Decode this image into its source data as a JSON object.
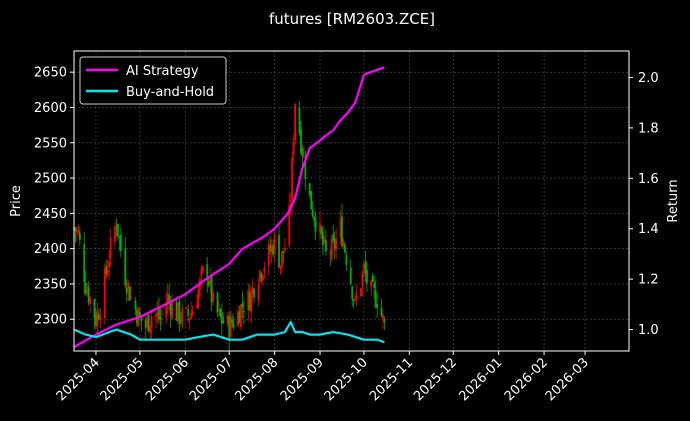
{
  "chart_data": {
    "type": "line",
    "title": "futures [RM2603.ZCE]",
    "ylabel": "Price",
    "ylabel_right": "Return",
    "xlim": [
      "2025-03-17",
      "2026-03-31"
    ],
    "ylim": [
      2255,
      2680
    ],
    "ylim_right": [
      0.915,
      2.105
    ],
    "x_ticks": [
      "2025-04",
      "2025-05",
      "2025-06",
      "2025-07",
      "2025-08",
      "2025-09",
      "2025-10",
      "2025-11",
      "2025-12",
      "2026-01",
      "2026-02",
      "2026-03"
    ],
    "y_ticks": [
      2300,
      2350,
      2400,
      2450,
      2500,
      2550,
      2600,
      2650
    ],
    "y_ticks_right": [
      1.0,
      1.2,
      1.4,
      1.6,
      1.8,
      2.0
    ],
    "grid": true,
    "legend_position": "top-left",
    "colors": {
      "up": "#ff0000",
      "down": "#00b000",
      "ai": "#ff00ff",
      "bh": "#00e5ee",
      "background": "#000000"
    },
    "price_keyframes": {
      "x": [
        "2025-03-17",
        "2025-03-20",
        "2025-03-25",
        "2025-04-01",
        "2025-04-04",
        "2025-04-10",
        "2025-04-15",
        "2025-04-20",
        "2025-04-25",
        "2025-05-01",
        "2025-05-05",
        "2025-05-10",
        "2025-05-15",
        "2025-05-20",
        "2025-05-25",
        "2025-06-01",
        "2025-06-05",
        "2025-06-10",
        "2025-06-15",
        "2025-06-20",
        "2025-06-25",
        "2025-07-01",
        "2025-07-05",
        "2025-07-10",
        "2025-07-15",
        "2025-07-20",
        "2025-07-25",
        "2025-08-01",
        "2025-08-05",
        "2025-08-10",
        "2025-08-12",
        "2025-08-15",
        "2025-08-20",
        "2025-08-25",
        "2025-09-01",
        "2025-09-05",
        "2025-09-10",
        "2025-09-15",
        "2025-09-20",
        "2025-09-25",
        "2025-10-01",
        "2025-10-05",
        "2025-10-10",
        "2025-10-15"
      ],
      "close": [
        2430,
        2420,
        2350,
        2300,
        2320,
        2390,
        2440,
        2370,
        2330,
        2300,
        2290,
        2310,
        2300,
        2330,
        2310,
        2300,
        2310,
        2340,
        2380,
        2320,
        2300,
        2290,
        2300,
        2320,
        2330,
        2360,
        2380,
        2410,
        2380,
        2420,
        2470,
        2610,
        2540,
        2470,
        2420,
        2390,
        2400,
        2430,
        2380,
        2320,
        2370,
        2340,
        2330,
        2290
      ]
    },
    "series": [
      {
        "name": "AI Strategy",
        "axis": "right",
        "x": [
          "2025-03-17",
          "2025-04-01",
          "2025-04-15",
          "2025-05-01",
          "2025-05-15",
          "2025-06-01",
          "2025-06-15",
          "2025-07-01",
          "2025-07-10",
          "2025-07-25",
          "2025-08-01",
          "2025-08-10",
          "2025-08-15",
          "2025-08-20",
          "2025-08-25",
          "2025-09-01",
          "2025-09-05",
          "2025-09-10",
          "2025-09-15",
          "2025-09-20",
          "2025-09-25",
          "2025-10-01",
          "2025-10-05",
          "2025-10-10",
          "2025-10-15"
        ],
        "values": [
          0.93,
          0.98,
          1.02,
          1.05,
          1.09,
          1.14,
          1.2,
          1.26,
          1.32,
          1.37,
          1.4,
          1.46,
          1.52,
          1.64,
          1.72,
          1.75,
          1.77,
          1.79,
          1.83,
          1.86,
          1.9,
          2.01,
          2.02,
          2.03,
          2.04
        ]
      },
      {
        "name": "Buy-and-Hold",
        "axis": "right",
        "x": [
          "2025-03-17",
          "2025-03-25",
          "2025-04-01",
          "2025-04-10",
          "2025-04-15",
          "2025-04-25",
          "2025-05-01",
          "2025-05-10",
          "2025-05-20",
          "2025-06-01",
          "2025-06-10",
          "2025-06-20",
          "2025-07-01",
          "2025-07-10",
          "2025-07-20",
          "2025-08-01",
          "2025-08-08",
          "2025-08-12",
          "2025-08-15",
          "2025-08-20",
          "2025-08-25",
          "2025-09-01",
          "2025-09-10",
          "2025-09-20",
          "2025-10-01",
          "2025-10-10",
          "2025-10-15"
        ],
        "values": [
          1.0,
          0.98,
          0.97,
          0.99,
          1.0,
          0.98,
          0.96,
          0.96,
          0.96,
          0.96,
          0.97,
          0.98,
          0.96,
          0.96,
          0.98,
          0.98,
          0.99,
          1.03,
          0.99,
          0.99,
          0.98,
          0.98,
          0.99,
          0.98,
          0.96,
          0.96,
          0.95
        ]
      }
    ]
  }
}
